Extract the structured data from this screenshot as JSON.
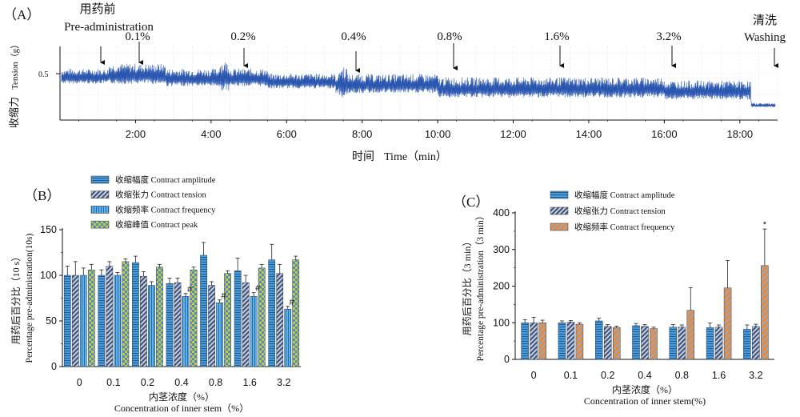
{
  "panel_a": {
    "label": "（A）",
    "ylabel_cn": "收缩力",
    "ylabel_en": "Tension（g）",
    "ytick": "0.5",
    "xlabel_cn": "时间",
    "xlabel_en": "Time（min）",
    "xticks": [
      "2:00",
      "4:00",
      "6:00",
      "8:00",
      "10:00",
      "12:00",
      "14:00",
      "16:00",
      "18:00"
    ],
    "xtick_minutes": [
      2,
      4,
      6,
      8,
      10,
      12,
      14,
      16,
      18
    ],
    "annotations": [
      {
        "text_cn": "用药前",
        "text_en": "Pre-administration",
        "minute": 1.1
      },
      {
        "text": "0.1%",
        "minute": 1.3
      },
      {
        "text": "0.2%",
        "minute": 4.2
      },
      {
        "text": "0.4%",
        "minute": 7.2
      },
      {
        "text": "0.8%",
        "minute": 10.0
      },
      {
        "text": "1.6%",
        "minute": 12.8
      },
      {
        "text": "3.2%",
        "minute": 15.9
      },
      {
        "text_cn": "清洗",
        "text_en": "Washing",
        "minute": 18.7
      }
    ],
    "trace_color": "#2a56b0"
  },
  "chart_data": [
    {
      "type": "bar",
      "panel": "（B）",
      "categories": [
        "0",
        "0.1",
        "0.2",
        "0.4",
        "0.8",
        "1.6",
        "3.2"
      ],
      "xlabel_cn": "内茎浓度（%）",
      "xlabel_en": "Concentration of inner stem（%）",
      "ylabel_cn": "用药后百分比（10 s）",
      "ylabel_en": "Percentage pre-administration(10s)",
      "ylim": [
        0,
        150
      ],
      "yticks": [
        "0",
        "50",
        "100",
        "150"
      ],
      "legend_position": "top",
      "series": [
        {
          "name": "收缩幅度 Contract amplitude",
          "values": [
            100,
            100,
            114,
            91,
            122,
            105,
            117
          ],
          "errors": [
            10,
            6,
            7,
            6,
            14,
            14,
            17
          ],
          "color": "#3d8ecf",
          "pattern": "hstripe"
        },
        {
          "name": "收缩张力 Contract tension",
          "values": [
            100,
            110,
            99,
            92,
            89,
            92,
            102
          ],
          "errors": [
            15,
            5,
            5,
            5,
            4,
            8,
            10
          ],
          "color": "#3a4f7a",
          "pattern": "diag"
        },
        {
          "name": "收缩频率 Contract frequency",
          "values": [
            100,
            100,
            89,
            77,
            70,
            77,
            63
          ],
          "errors": [
            8,
            3,
            4,
            3,
            3,
            4,
            3
          ],
          "color": "#3d8ecf",
          "pattern": "vstripe"
        },
        {
          "name": "收缩峰值 Contract peak",
          "values": [
            106,
            115,
            109,
            106,
            102,
            108,
            117
          ],
          "errors": [
            6,
            3,
            3,
            3,
            3,
            4,
            4
          ],
          "color": "#8fa832",
          "pattern": "checker"
        }
      ],
      "markers": [
        {
          "text": "#",
          "series": 2,
          "category": 3
        },
        {
          "text": "#",
          "series": 2,
          "category": 4
        },
        {
          "text": "#",
          "series": 2,
          "category": 5
        },
        {
          "text": "#",
          "series": 2,
          "category": 6
        }
      ]
    },
    {
      "type": "bar",
      "panel": "（C）",
      "categories": [
        "0",
        "0.1",
        "0.2",
        "0.4",
        "0.8",
        "1.6",
        "3.2"
      ],
      "xlabel_cn": "内茎浓度（%）",
      "xlabel_en": "Concentration of inner stem(%)",
      "ylabel_cn": "用药后百分比（3 min）",
      "ylabel_en": "Percentage pre-administration（3 min）",
      "ylim": [
        0,
        400
      ],
      "yticks": [
        "0",
        "100",
        "200",
        "300",
        "400"
      ],
      "legend_position": "top",
      "series": [
        {
          "name": "收缩幅度 Contract amplitude",
          "values": [
            100,
            100,
            105,
            92,
            88,
            87,
            82
          ],
          "errors": [
            8,
            5,
            8,
            6,
            7,
            12,
            12
          ],
          "color": "#3d8ecf",
          "pattern": "hstripe"
        },
        {
          "name": "收缩张力 Contract tension",
          "values": [
            100,
            102,
            90,
            90,
            88,
            88,
            90
          ],
          "errors": [
            15,
            4,
            5,
            5,
            6,
            6,
            6
          ],
          "color": "#3a4f7a",
          "pattern": "diag"
        },
        {
          "name": "收缩频率 Contract frequency",
          "values": [
            100,
            96,
            87,
            84,
            134,
            195,
            256
          ],
          "errors": [
            7,
            4,
            4,
            4,
            62,
            75,
            100
          ],
          "color": "#e07a2e",
          "pattern": "orangediag"
        }
      ],
      "markers": [
        {
          "text": "*",
          "series": 2,
          "category": 6
        }
      ]
    }
  ]
}
